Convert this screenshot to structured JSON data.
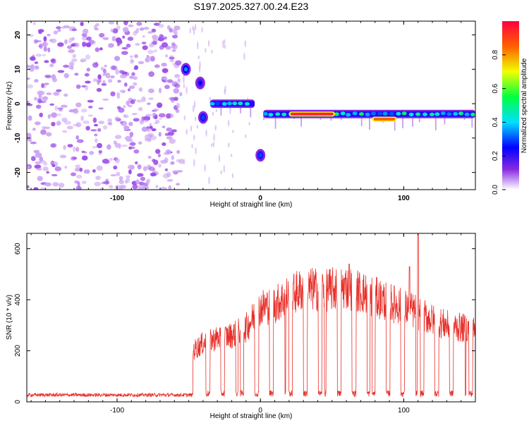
{
  "title": "S197.2025.327.00.24.E23",
  "chart_data": [
    {
      "type": "heatmap",
      "xlabel": "Height of straight line (km)",
      "ylabel": "Frequency (Hz)",
      "xlim": [
        -163,
        150
      ],
      "ylim": [
        -25,
        24
      ],
      "xticks": [
        -100,
        0,
        100
      ],
      "yticks": [
        -20,
        -10,
        0,
        10,
        20
      ],
      "colorbar": {
        "label": "Normalized spectral amplitude",
        "range": [
          0,
          1
        ],
        "ticks": [
          "0.0",
          "0.2",
          "0.4",
          "0.6",
          "0.8"
        ],
        "tick_values": [
          0,
          0.2,
          0.4,
          0.6,
          0.8
        ]
      },
      "features": [
        {
          "name": "noise",
          "x_range": [
            -163,
            -55
          ],
          "freq_range": [
            -25,
            24
          ],
          "amplitude": 0.03
        },
        {
          "name": "blob",
          "x": -52,
          "freq": 10,
          "amplitude": 0.35
        },
        {
          "name": "blob",
          "x": -42,
          "freq": 6,
          "amplitude": 0.25
        },
        {
          "name": "blob",
          "x": -40,
          "freq": -4,
          "amplitude": 0.3
        },
        {
          "name": "band",
          "x_range": [
            -35,
            -4
          ],
          "freq": 0,
          "amplitude": 0.45
        },
        {
          "name": "blob",
          "x": 0,
          "freq": -15,
          "amplitude": 0.3
        },
        {
          "name": "band",
          "x_range": [
            2,
            150
          ],
          "freq": -3,
          "amplitude": 0.5
        },
        {
          "name": "peak",
          "x_range": [
            20,
            52
          ],
          "freq": -3,
          "amplitude": 0.95
        },
        {
          "name": "peak",
          "x_range": [
            78,
            95
          ],
          "freq": -4.5,
          "amplitude": 0.85
        }
      ]
    },
    {
      "type": "line",
      "xlabel": "Height of straight line (km)",
      "ylabel": "SNR (10 * v/v)",
      "xlim": [
        -163,
        150
      ],
      "ylim": [
        0,
        660
      ],
      "xticks": [
        -100,
        0,
        100
      ],
      "yticks": [
        0,
        200,
        400,
        600
      ],
      "series": [
        {
          "name": "SNR",
          "color": "#e8302a",
          "envelope_x": [
            -163,
            -50,
            -47,
            -40,
            -30,
            -20,
            -10,
            0,
            10,
            20,
            30,
            40,
            50,
            60,
            70,
            80,
            90,
            100,
            110,
            120,
            130,
            140,
            150
          ],
          "envelope_y": [
            22,
            24,
            200,
            230,
            250,
            260,
            290,
            370,
            380,
            420,
            440,
            440,
            440,
            450,
            430,
            410,
            390,
            370,
            350,
            320,
            300,
            290,
            280
          ],
          "spikes": [
            {
              "x": 62,
              "y": 540
            },
            {
              "x": 104,
              "y": 530
            },
            {
              "x": 110,
              "y": 655
            }
          ]
        }
      ]
    }
  ]
}
